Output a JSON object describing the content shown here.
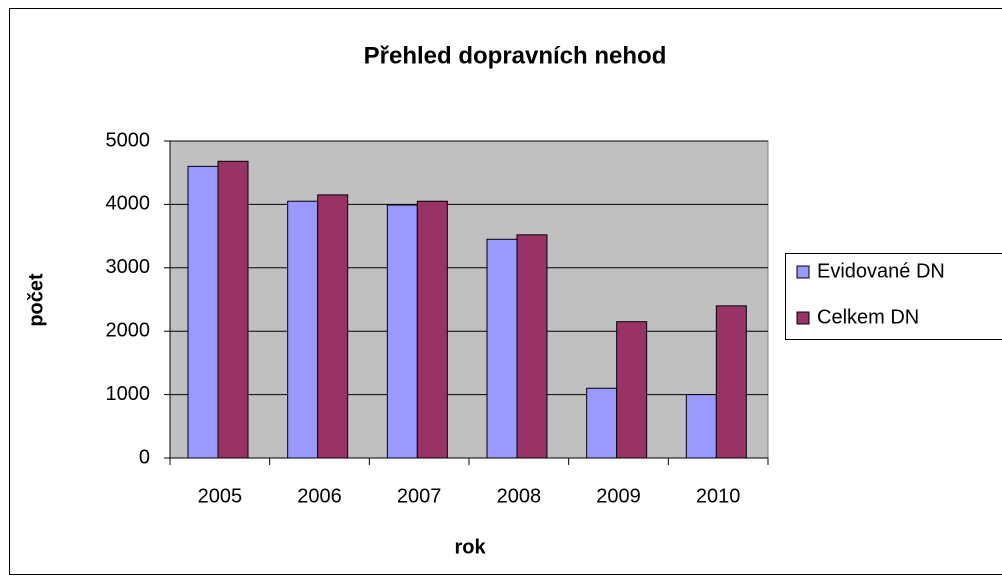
{
  "chart_data": {
    "type": "bar",
    "title": "Přehled dopravních nehod",
    "x_label": "rok",
    "y_label": "počet",
    "categories": [
      "2005",
      "2006",
      "2007",
      "2008",
      "2009",
      "2010"
    ],
    "series": [
      {
        "name": "Evidované DN",
        "color": "#9999ff",
        "values": [
          4600,
          4050,
          3990,
          3450,
          1100,
          1000
        ]
      },
      {
        "name": "Celkem DN",
        "color": "#993366",
        "values": [
          4680,
          4150,
          4050,
          3520,
          2150,
          2400
        ]
      }
    ],
    "ylim": [
      0,
      5000
    ],
    "yticks": [
      0,
      1000,
      2000,
      3000,
      4000,
      5000
    ],
    "grid": true,
    "legend": "right"
  }
}
